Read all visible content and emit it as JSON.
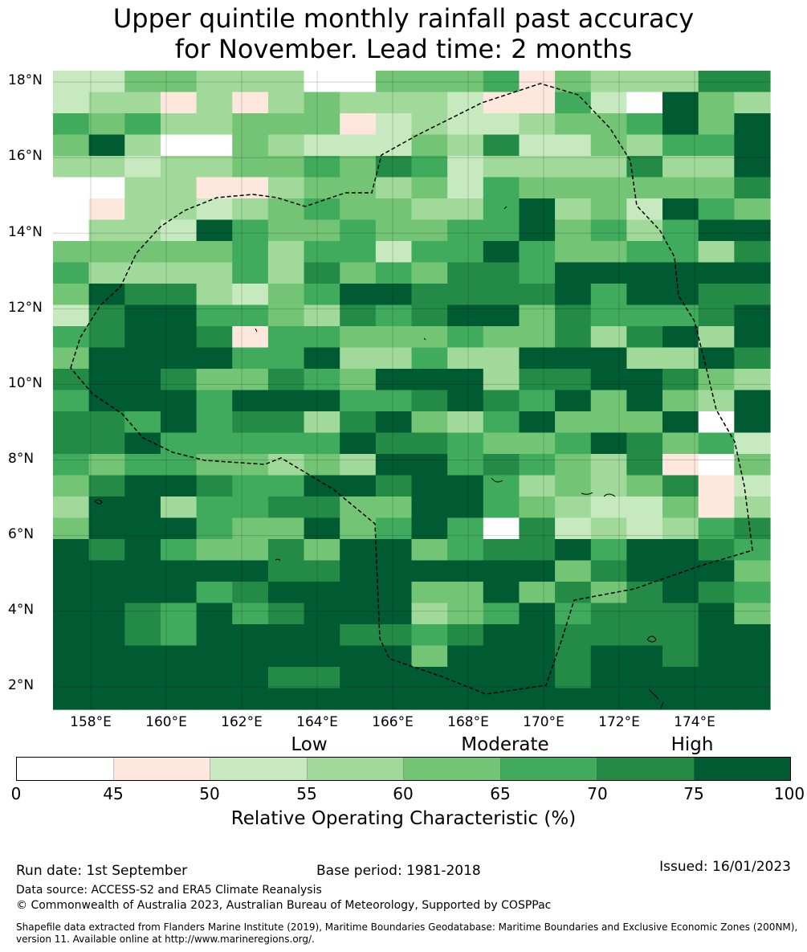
{
  "title": {
    "line1": "Upper quintile monthly rainfall past accuracy",
    "line2": "for November. Lead time: 2 months"
  },
  "map": {
    "lat_labels": [
      "18°N",
      "16°N",
      "14°N",
      "12°N",
      "10°N",
      "8°N",
      "6°N",
      "4°N",
      "2°N"
    ],
    "lon_labels": [
      "158°E",
      "160°E",
      "162°E",
      "164°E",
      "166°E",
      "168°E",
      "170°E",
      "172°E",
      "174°E"
    ],
    "lat_range": [
      1.4,
      18.3
    ],
    "lon_range": [
      157.0,
      176.0
    ],
    "grid_rows": [
      "22443330044451433366",
      "23313134333211520743",
      "54533444123223445747",
      "47300432224362243557",
      "33233445465233336337",
      "00331134434254444446",
      "01332345443357342754",
      "03327544544557453577",
      "44444535525575445536",
      "53333536454665777777",
      "47663245776666757766",
      "26775543656774655567",
      "56776155444544636737",
      "47777557335337773376",
      "67764465477736677643",
      "57775777556765747437",
      "66575663674357444707",
      "66755555766544576452",
      "54554434377565436104",
      "46776557767753434612",
      "37735566447754322413",
      "47775447457506232356",
      "76754464774566757765",
      "77777766777777467774",
      "77775677774474646765",
      "77657567773457566674",
      "77657777665677666677",
      "77777777774777677677",
      "77777766777777677777",
      "77777777777777777777"
    ]
  },
  "categories": {
    "low": "Low",
    "moderate": "Moderate",
    "high": "High"
  },
  "colorbar": {
    "colors": [
      "#ffffff",
      "#fee8de",
      "#c7e9c0",
      "#a1d99b",
      "#74c476",
      "#41ab5d",
      "#238b45",
      "#005a32"
    ],
    "ticks": [
      "0",
      "45",
      "50",
      "55",
      "60",
      "65",
      "70",
      "75",
      "100"
    ],
    "label": "Relative Operating Characteristic (%)"
  },
  "footer": {
    "run_date": "Run date: 1st September",
    "base_period": "Base period: 1981-2018",
    "issued": "Issued: 16/01/2023",
    "data_source": "Data source: ACCESS-S2 and ERA5 Climate Reanalysis",
    "copyright": "© Commonwealth of Australia 2023, Australian Bureau of Meteorology, Supported by COSPPac",
    "shapefile_line1": "Shapefile data extracted from Flanders Marine Institute (2019), Maritime Boundaries Geodatabase: Maritime Boundaries and Exclusive Economic Zones (200NM),",
    "shapefile_line2": "version 11. Available online at http://www.marineregions.org/."
  }
}
